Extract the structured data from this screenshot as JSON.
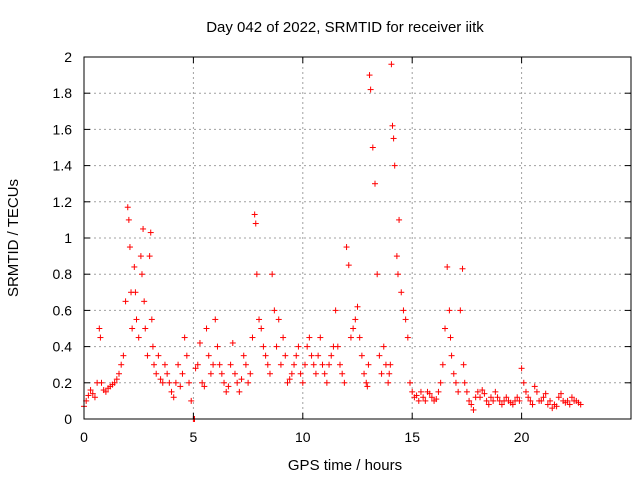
{
  "chart_data": {
    "type": "scatter",
    "title": "Day 042 of 2022, SRMTID for receiver iitk",
    "xlabel": "GPS time / hours",
    "ylabel": "SRMTID / TECUs",
    "xlim": [
      0,
      25
    ],
    "ylim": [
      0,
      2
    ],
    "xticks": [
      0,
      5,
      10,
      15,
      20
    ],
    "xtick_labels": [
      "0",
      "5",
      "10",
      "15",
      "20"
    ],
    "yticks": [
      0,
      0.2,
      0.4,
      0.6,
      0.8,
      1,
      1.2,
      1.4,
      1.6,
      1.8,
      2
    ],
    "ytick_labels": [
      "0",
      "0.2",
      "0.4",
      "0.6",
      "0.8",
      "1",
      "1.2",
      "1.4",
      "1.6",
      "1.8",
      "2"
    ],
    "grid": true,
    "marker": "+",
    "color": "#ff0000",
    "series": [
      {
        "name": "SRMTID",
        "x": [
          0.0,
          0.1,
          0.2,
          0.3,
          0.4,
          0.5,
          0.6,
          0.7,
          0.75,
          0.8,
          0.9,
          1.0,
          1.1,
          1.2,
          1.3,
          1.4,
          1.5,
          1.6,
          1.7,
          1.8,
          1.9,
          2.0,
          2.05,
          2.1,
          2.15,
          2.2,
          2.3,
          2.35,
          2.4,
          2.5,
          2.6,
          2.65,
          2.7,
          2.75,
          2.8,
          2.9,
          3.0,
          3.05,
          3.1,
          3.15,
          3.2,
          3.3,
          3.4,
          3.5,
          3.6,
          3.7,
          3.8,
          3.9,
          4.0,
          4.1,
          4.2,
          4.3,
          4.4,
          4.5,
          4.6,
          4.7,
          4.8,
          4.9,
          5.0,
          5.05,
          5.1,
          5.2,
          5.3,
          5.4,
          5.5,
          5.6,
          5.7,
          5.8,
          5.9,
          6.0,
          6.1,
          6.2,
          6.3,
          6.4,
          6.5,
          6.6,
          6.7,
          6.8,
          6.9,
          7.0,
          7.1,
          7.2,
          7.3,
          7.4,
          7.5,
          7.6,
          7.7,
          7.8,
          7.85,
          7.9,
          8.0,
          8.1,
          8.2,
          8.3,
          8.4,
          8.5,
          8.6,
          8.7,
          8.8,
          8.9,
          9.0,
          9.1,
          9.2,
          9.3,
          9.4,
          9.5,
          9.6,
          9.7,
          9.8,
          9.9,
          10.0,
          10.1,
          10.2,
          10.3,
          10.4,
          10.5,
          10.6,
          10.7,
          10.8,
          10.9,
          11.0,
          11.1,
          11.2,
          11.3,
          11.4,
          11.5,
          11.6,
          11.7,
          11.8,
          11.9,
          12.0,
          12.1,
          12.2,
          12.3,
          12.4,
          12.5,
          12.6,
          12.7,
          12.8,
          12.9,
          12.95,
          13.0,
          13.05,
          13.1,
          13.2,
          13.3,
          13.4,
          13.5,
          13.6,
          13.7,
          13.8,
          13.9,
          13.95,
          14.0,
          14.05,
          14.1,
          14.15,
          14.2,
          14.3,
          14.35,
          14.4,
          14.5,
          14.6,
          14.7,
          14.8,
          14.9,
          15.0,
          15.1,
          15.2,
          15.3,
          15.4,
          15.5,
          15.6,
          15.7,
          15.8,
          15.9,
          16.0,
          16.1,
          16.2,
          16.3,
          16.4,
          16.5,
          16.6,
          16.7,
          16.75,
          16.8,
          16.9,
          17.0,
          17.1,
          17.2,
          17.3,
          17.35,
          17.4,
          17.5,
          17.6,
          17.7,
          17.8,
          17.9,
          18.0,
          18.1,
          18.2,
          18.3,
          18.4,
          18.5,
          18.6,
          18.7,
          18.8,
          18.9,
          19.0,
          19.1,
          19.2,
          19.3,
          19.4,
          19.5,
          19.6,
          19.7,
          19.8,
          19.9,
          20.0,
          20.1,
          20.2,
          20.3,
          20.4,
          20.5,
          20.6,
          20.7,
          20.8,
          20.9,
          21.0,
          21.1,
          21.2,
          21.3,
          21.4,
          21.5,
          21.6,
          21.7,
          21.8,
          21.9,
          22.0,
          22.1,
          22.2,
          22.3,
          22.4,
          22.5,
          22.6,
          22.7
        ],
        "y": [
          0.07,
          0.1,
          0.13,
          0.16,
          0.14,
          0.12,
          0.2,
          0.5,
          0.45,
          0.2,
          0.16,
          0.15,
          0.17,
          0.18,
          0.19,
          0.2,
          0.22,
          0.25,
          0.3,
          0.35,
          0.65,
          1.17,
          1.1,
          0.95,
          0.7,
          0.5,
          0.84,
          0.7,
          0.55,
          0.45,
          0.9,
          0.8,
          1.05,
          0.65,
          0.5,
          0.35,
          0.9,
          1.03,
          0.55,
          0.4,
          0.3,
          0.25,
          0.35,
          0.22,
          0.2,
          0.3,
          0.25,
          0.2,
          0.15,
          0.12,
          0.2,
          0.3,
          0.18,
          0.25,
          0.45,
          0.35,
          0.2,
          0.1,
          0.0,
          0.0,
          0.28,
          0.3,
          0.42,
          0.2,
          0.18,
          0.5,
          0.35,
          0.25,
          0.3,
          0.55,
          0.4,
          0.3,
          0.25,
          0.2,
          0.15,
          0.18,
          0.3,
          0.42,
          0.25,
          0.2,
          0.15,
          0.22,
          0.35,
          0.3,
          0.2,
          0.25,
          0.45,
          1.13,
          1.08,
          0.8,
          0.55,
          0.5,
          0.4,
          0.35,
          0.3,
          0.25,
          0.8,
          0.6,
          0.4,
          0.55,
          0.3,
          0.45,
          0.35,
          0.2,
          0.22,
          0.25,
          0.3,
          0.35,
          0.4,
          0.25,
          0.2,
          0.3,
          0.4,
          0.45,
          0.35,
          0.3,
          0.25,
          0.35,
          0.45,
          0.3,
          0.25,
          0.2,
          0.3,
          0.35,
          0.4,
          0.6,
          0.4,
          0.3,
          0.25,
          0.2,
          0.95,
          0.85,
          0.45,
          0.5,
          0.55,
          0.62,
          0.45,
          0.35,
          0.25,
          0.2,
          0.18,
          0.3,
          1.9,
          1.82,
          1.5,
          1.3,
          0.8,
          0.35,
          0.25,
          0.4,
          0.3,
          0.2,
          0.25,
          0.3,
          1.96,
          1.62,
          1.55,
          1.4,
          0.9,
          0.8,
          1.1,
          0.7,
          0.6,
          0.55,
          0.45,
          0.2,
          0.15,
          0.12,
          0.13,
          0.1,
          0.15,
          0.12,
          0.1,
          0.15,
          0.14,
          0.12,
          0.1,
          0.11,
          0.15,
          0.2,
          0.3,
          0.5,
          0.84,
          0.6,
          0.45,
          0.35,
          0.25,
          0.2,
          0.15,
          0.6,
          0.83,
          0.3,
          0.2,
          0.15,
          0.1,
          0.08,
          0.05,
          0.12,
          0.15,
          0.12,
          0.16,
          0.14,
          0.1,
          0.08,
          0.12,
          0.1,
          0.15,
          0.12,
          0.1,
          0.08,
          0.1,
          0.12,
          0.1,
          0.09,
          0.08,
          0.1,
          0.12,
          0.1,
          0.28,
          0.2,
          0.15,
          0.12,
          0.1,
          0.08,
          0.18,
          0.15,
          0.1,
          0.1,
          0.12,
          0.14,
          0.08,
          0.1,
          0.06,
          0.08,
          0.07,
          0.12,
          0.14,
          0.1,
          0.09,
          0.1,
          0.08,
          0.12,
          0.1,
          0.1,
          0.09,
          0.08
        ]
      }
    ]
  }
}
